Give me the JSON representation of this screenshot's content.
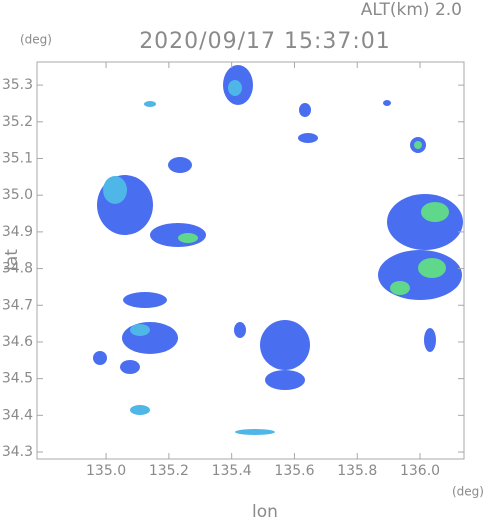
{
  "chart_data": {
    "type": "radar-image",
    "title": "2020/09/17 15:37:01",
    "altitude_label": "ALT(km) 2.0",
    "y_unit": "(deg)",
    "x_unit": "(deg)",
    "ylabel": "lat",
    "xlabel": "lon",
    "xlim": [
      134.78,
      136.14
    ],
    "ylim": [
      34.281,
      35.363
    ],
    "xticks": [
      {
        "value": 135,
        "label": "135.0"
      },
      135.2,
      135.4,
      135.6,
      135.8,
      {
        "value": 136,
        "label": "136.0"
      }
    ],
    "yticks": [
      34.3,
      34.4,
      34.5,
      34.6,
      34.7,
      34.8,
      34.9,
      {
        "value": 35,
        "label": "35.0"
      },
      35.1,
      35.2,
      35.3
    ]
  }
}
